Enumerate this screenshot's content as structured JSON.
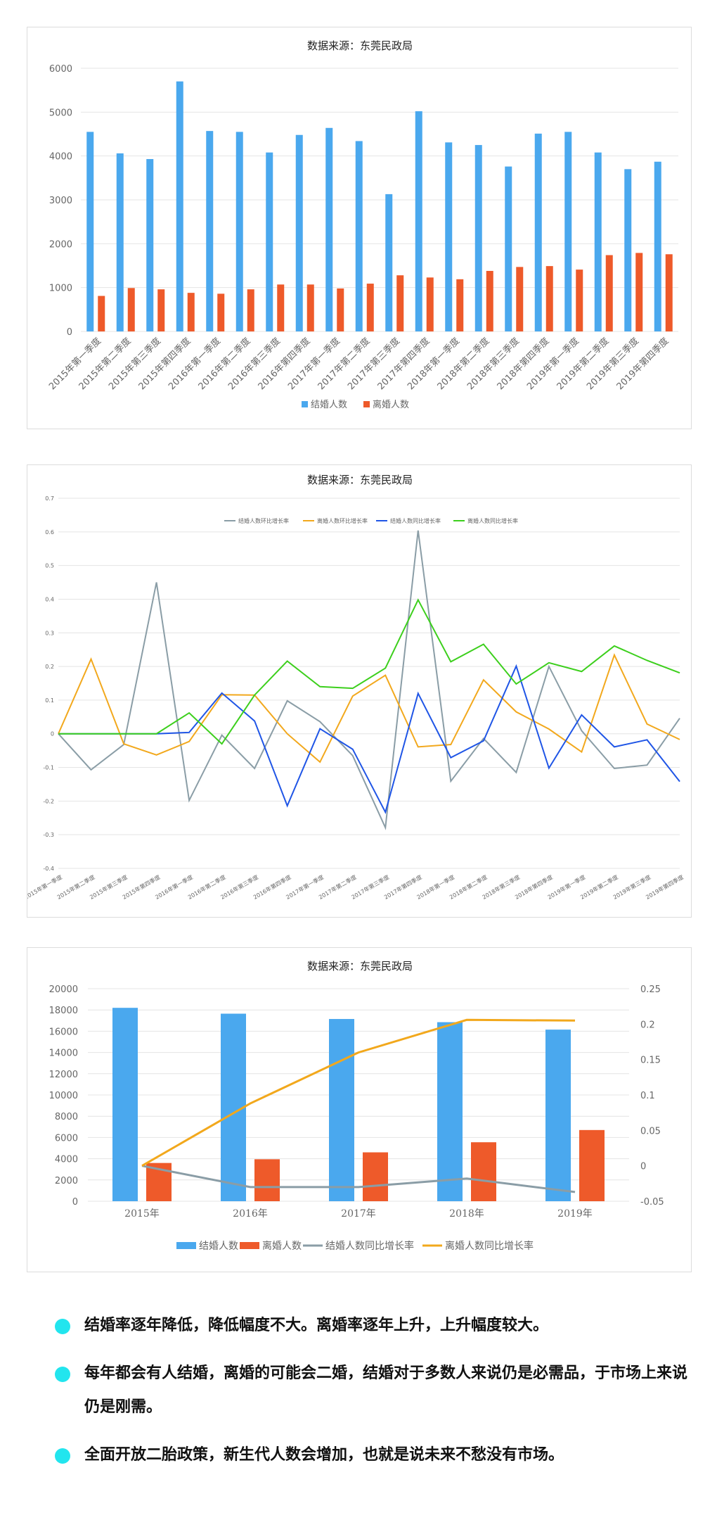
{
  "colors": {
    "blue": "#4aa8ee",
    "orange": "#ee5a2a",
    "gray": "#8a9da6",
    "yellow": "#f2a81c",
    "green": "#3ccf1c",
    "lineBlue": "#1f55e6",
    "grid": "#e4e4e4",
    "axis": "#666666",
    "accent": "#22e5ee"
  },
  "chart_data": [
    {
      "type": "bar",
      "title": "数据来源：东莞民政局",
      "categories": [
        "2015年第一季度",
        "2015年第二季度",
        "2015年第三季度",
        "2015年第四季度",
        "2016年第一季度",
        "2016年第二季度",
        "2016年第三季度",
        "2016年第四季度",
        "2017年第一季度",
        "2017年第二季度",
        "2017年第三季度",
        "2017年第四季度",
        "2018年第一季度",
        "2018年第二季度",
        "2018年第三季度",
        "2018年第四季度",
        "2019年第一季度",
        "2019年第二季度",
        "2019年第三季度",
        "2019年第四季度"
      ],
      "series": [
        {
          "name": "结婚人数",
          "values": [
            4550,
            4060,
            3930,
            5700,
            4570,
            4550,
            4080,
            4480,
            4640,
            4340,
            3130,
            5020,
            4310,
            4250,
            3760,
            4510,
            4550,
            4080,
            3700,
            3870
          ]
        },
        {
          "name": "离婚人数",
          "values": [
            810,
            990,
            960,
            880,
            860,
            960,
            1070,
            1070,
            980,
            1090,
            1280,
            1230,
            1190,
            1380,
            1470,
            1490,
            1410,
            1740,
            1790,
            1760
          ]
        }
      ],
      "ylim": [
        0,
        6000
      ],
      "yticks": [
        "0",
        "1000",
        "2000",
        "3000",
        "4000",
        "5000",
        "6000"
      ],
      "legend": "bottom"
    },
    {
      "type": "line",
      "title": "数据来源：东莞民政局",
      "categories": [
        "2015年第一季度",
        "2015年第二季度",
        "2015年第三季度",
        "2015年第四季度",
        "2016年第一季度",
        "2016年第二季度",
        "2016年第三季度",
        "2016年第四季度",
        "2017年第一季度",
        "2017年第二季度",
        "2017年第三季度",
        "2017年第四季度",
        "2018年第一季度",
        "2018年第二季度",
        "2018年第三季度",
        "2018年第四季度",
        "2019年第一季度",
        "2019年第二季度",
        "2019年第三季度",
        "2019年第四季度"
      ],
      "series": [
        {
          "name": "结婚人数环比增长率",
          "values": [
            0,
            -0.107,
            -0.032,
            0.45,
            -0.198,
            -0.004,
            -0.103,
            0.098,
            0.036,
            -0.065,
            -0.279,
            0.604,
            -0.141,
            -0.014,
            -0.115,
            0.2,
            0.009,
            -0.103,
            -0.093,
            0.046
          ]
        },
        {
          "name": "离婚人数环比增长率",
          "values": [
            0,
            0.222,
            -0.03,
            -0.063,
            -0.023,
            0.116,
            0.115,
            0,
            -0.084,
            0.112,
            0.174,
            -0.039,
            -0.032,
            0.16,
            0.065,
            0.014,
            -0.054,
            0.234,
            0.029,
            -0.017
          ]
        },
        {
          "name": "结婚人数同比增长率",
          "values": [
            0,
            0,
            0,
            0,
            0.004,
            0.121,
            0.038,
            -0.214,
            0.015,
            -0.046,
            -0.233,
            0.12,
            -0.071,
            -0.021,
            0.201,
            -0.102,
            0.056,
            -0.039,
            -0.018,
            -0.142
          ]
        },
        {
          "name": "离婚人数同比增长率",
          "values": [
            0,
            0,
            0,
            0,
            0.062,
            -0.03,
            0.115,
            0.216,
            0.14,
            0.135,
            0.195,
            0.398,
            0.214,
            0.266,
            0.148,
            0.211,
            0.185,
            0.261,
            0.218,
            0.181
          ]
        }
      ],
      "ylim": [
        -0.4,
        0.7
      ],
      "yticks": [
        "-0.4",
        "-0.3",
        "-0.2",
        "-0.1",
        "0",
        "0.1",
        "0.2",
        "0.3",
        "0.4",
        "0.5",
        "0.6",
        "0.7"
      ],
      "legend": "top"
    },
    {
      "type": "bar",
      "title": "数据来源：东莞民政局",
      "categories": [
        "2015年",
        "2016年",
        "2017年",
        "2018年",
        "2019年"
      ],
      "series": [
        {
          "name": "结婚人数",
          "values": [
            18200,
            17650,
            17150,
            16850,
            16150
          ],
          "axis": "left"
        },
        {
          "name": "离婚人数",
          "values": [
            3600,
            3950,
            4600,
            5550,
            6700
          ],
          "axis": "left"
        },
        {
          "name": "结婚人数同比增长率",
          "values": [
            0,
            -0.03,
            -0.03,
            -0.018,
            -0.037
          ],
          "axis": "right",
          "kind": "line"
        },
        {
          "name": "离婚人数同比增长率",
          "values": [
            0,
            0.088,
            0.16,
            0.206,
            0.205
          ],
          "axis": "right",
          "kind": "line"
        }
      ],
      "ylim_left": [
        0,
        20000
      ],
      "ylim_right": [
        -0.05,
        0.25
      ],
      "yticks_left": [
        "0",
        "2000",
        "4000",
        "6000",
        "8000",
        "10000",
        "12000",
        "14000",
        "16000",
        "18000",
        "20000"
      ],
      "yticks_right": [
        "-0.05",
        "0",
        "0.05",
        "0.1",
        "0.15",
        "0.2",
        "0.25"
      ],
      "legend": "bottom"
    }
  ],
  "notes": [
    "结婚率逐年降低，降低幅度不大。离婚率逐年上升，上升幅度较大。",
    "每年都会有人结婚，离婚的可能会二婚，结婚对于多数人来说仍是必需品，于市场上来说仍是刚需。",
    "全面开放二胎政策，新生代人数会增加，也就是说未来不愁没有市场。"
  ]
}
